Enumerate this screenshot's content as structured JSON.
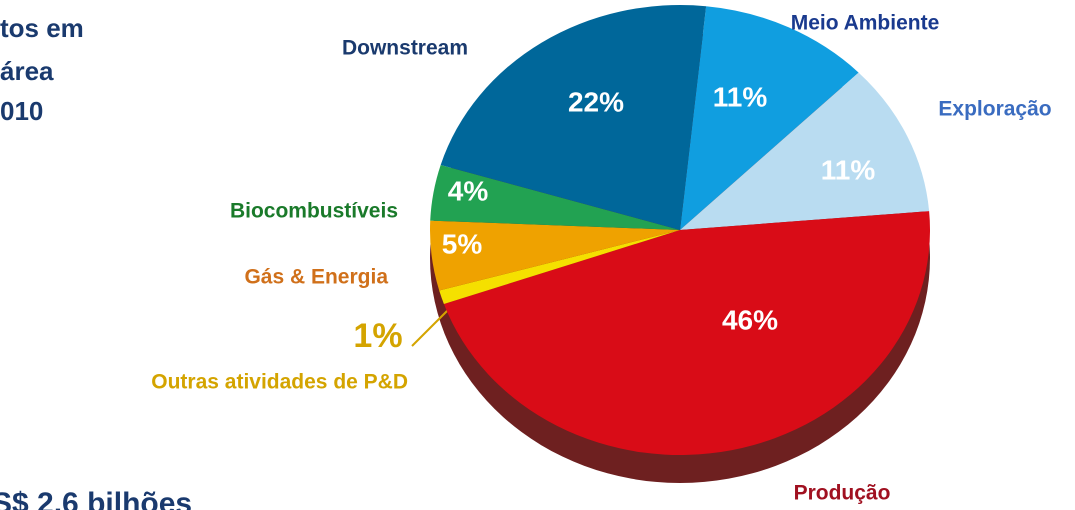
{
  "chart_data": {
    "type": "pie",
    "title_lines": [
      "tos em",
      "área",
      "010"
    ],
    "footnote": "S$ 2,6 bilhões",
    "categories": [
      "Meio Ambiente",
      "Exploração",
      "Produção",
      "Outras atividades de P&D",
      "Gás & Energia",
      "Biocombustíveis",
      "Downstream"
    ],
    "values": [
      11,
      11,
      46,
      1,
      5,
      4,
      22
    ],
    "value_labels": [
      "11%",
      "11%",
      "46%",
      "1%",
      "5%",
      "4%",
      "22%"
    ],
    "colors": [
      "#109ee0",
      "#b9dcf1",
      "#d90c17",
      "#f5e000",
      "#efa200",
      "#22a252",
      "#00679a"
    ]
  }
}
